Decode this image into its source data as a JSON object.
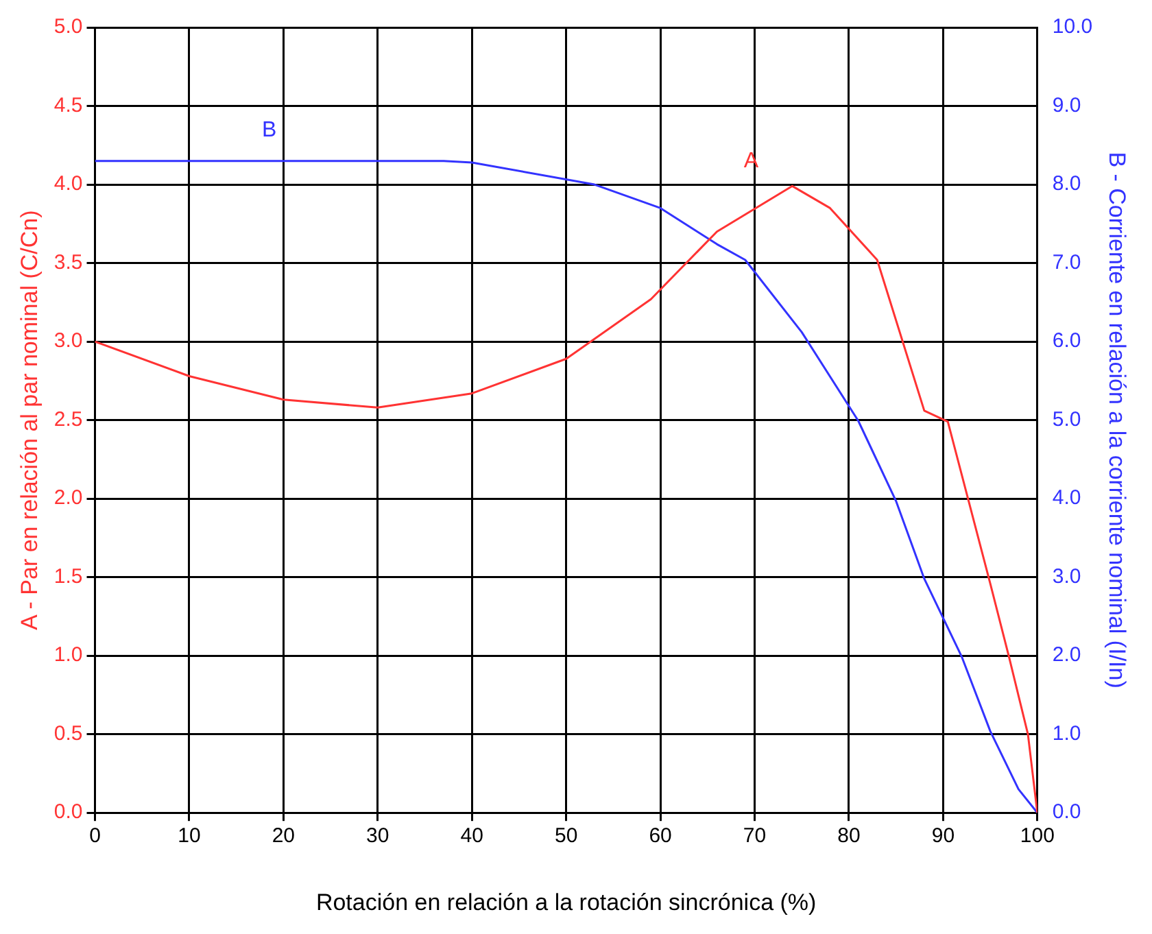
{
  "chart_data": {
    "type": "line",
    "xlabel": "Rotación en relación a la rotación sincrónica (%)",
    "ylabel": "A - Par en relación al par nominal (C/Cn)",
    "y2label": "B - Corriente en relación a la corriente nominal (I/In)",
    "series": [
      {
        "color": "#ff3333",
        "x": [
          0,
          10,
          20,
          30,
          40,
          50,
          59,
          66,
          74,
          78,
          83,
          88,
          90.5,
          95,
          97,
          99,
          100
        ],
        "values": [
          3.0,
          2.78,
          2.63,
          2.58,
          2.67,
          2.89,
          3.27,
          3.7,
          3.99,
          3.85,
          3.52,
          2.56,
          2.49,
          1.46,
          0.99,
          0.5,
          0
        ]
      },
      {
        "color": "#3333ff",
        "axis": "y2",
        "x": [
          0,
          37,
          40,
          53,
          60,
          66,
          69,
          75,
          81,
          85,
          88,
          92,
          95,
          98,
          100
        ],
        "values": [
          8.3,
          8.3,
          8.28,
          8.0,
          7.7,
          7.24,
          7.04,
          6.12,
          4.99,
          3.97,
          2.98,
          1.98,
          1.04,
          0.3,
          0
        ]
      }
    ],
    "annotations": [
      "A",
      "B"
    ],
    "xlim": [
      0,
      100
    ],
    "xticks": [
      0,
      10,
      20,
      30,
      40,
      50,
      60,
      70,
      80,
      90,
      100
    ],
    "ylim": [
      0,
      5
    ],
    "yticks": [
      {
        "value": 0,
        "label": "0.0"
      },
      {
        "value": 0.5,
        "label": "0.5"
      },
      {
        "value": 1,
        "label": "1.0"
      },
      {
        "value": 1.5,
        "label": "1.5"
      },
      {
        "value": 2,
        "label": "2.0"
      },
      {
        "value": 2.5,
        "label": "2.5"
      },
      {
        "value": 3,
        "label": "3.0"
      },
      {
        "value": 3.5,
        "label": "3.5"
      },
      {
        "value": 4,
        "label": "4.0"
      },
      {
        "value": 4.5,
        "label": "4.5"
      },
      {
        "value": 5,
        "label": "5.0"
      }
    ],
    "y2lim": [
      0,
      10
    ],
    "y2ticks": [
      {
        "value": 0,
        "label": "0.0"
      },
      {
        "value": 1,
        "label": "1.0"
      },
      {
        "value": 2,
        "label": "2.0"
      },
      {
        "value": 3,
        "label": "3.0"
      },
      {
        "value": 4,
        "label": "4.0"
      },
      {
        "value": 5,
        "label": "5.0"
      },
      {
        "value": 6,
        "label": "6.0"
      },
      {
        "value": 7,
        "label": "7.0"
      },
      {
        "value": 8,
        "label": "8.0"
      },
      {
        "value": 9,
        "label": "9.0"
      },
      {
        "value": 10,
        "label": "10.0"
      }
    ],
    "grid": true,
    "legend": false,
    "marker": "none",
    "line_style": "solid"
  }
}
